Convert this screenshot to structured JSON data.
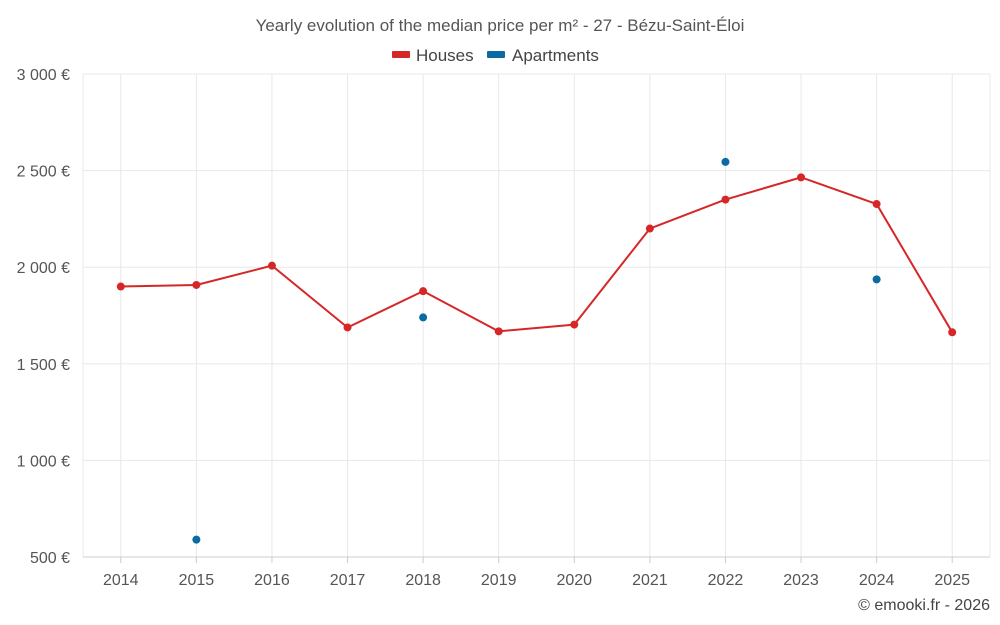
{
  "chart_data": {
    "type": "line",
    "title": "Yearly evolution of the median price per m² - 27 - Bézu-Saint-Éloi",
    "categories": [
      "2014",
      "2015",
      "2016",
      "2017",
      "2018",
      "2019",
      "2020",
      "2021",
      "2022",
      "2023",
      "2024",
      "2025"
    ],
    "ylim": [
      500,
      3000
    ],
    "yticks": [
      500,
      1000,
      1500,
      2000,
      2500,
      3000
    ],
    "ytick_labels": [
      "500 €",
      "1 000 €",
      "1 500 €",
      "2 000 €",
      "2 500 €",
      "3 000 €"
    ],
    "grid": true,
    "legend_position": "top-center",
    "series": [
      {
        "name": "Houses",
        "color": "#d62728",
        "style": "line",
        "values": [
          1900,
          1908,
          2008,
          1688,
          1876,
          1668,
          1703,
          2200,
          2350,
          2465,
          2327,
          1663
        ]
      },
      {
        "name": "Apartments",
        "color": "#0a6aa1",
        "style": "points",
        "values": [
          null,
          590,
          null,
          null,
          1740,
          null,
          null,
          null,
          2545,
          null,
          1937,
          null
        ]
      }
    ],
    "credit": "© emooki.fr - 2026"
  }
}
